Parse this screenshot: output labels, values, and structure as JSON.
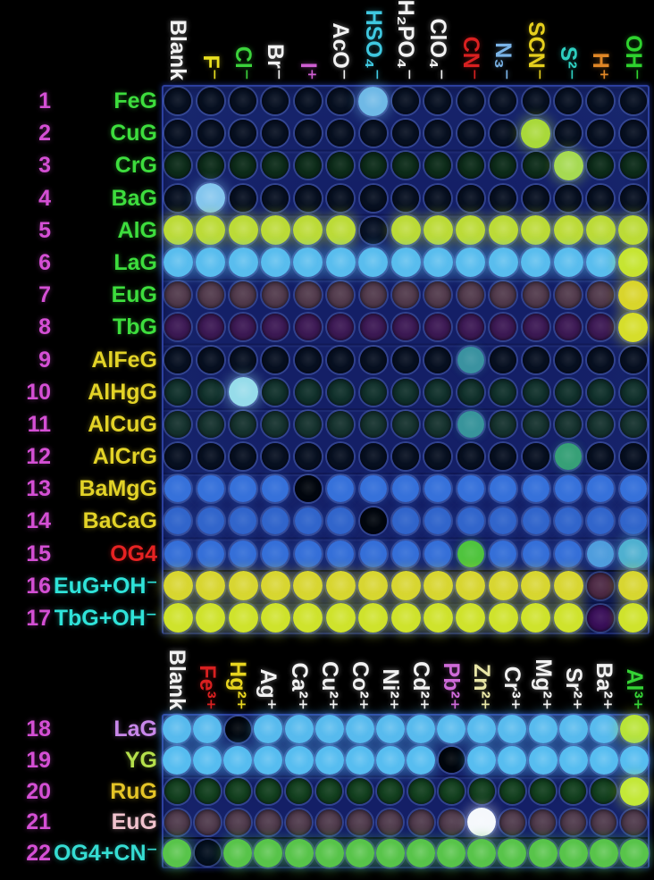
{
  "figure": {
    "description_colors": {
      "row_number": "#d44fd4",
      "plate_blue": "#18276e"
    },
    "panels": [
      {
        "id": "top",
        "name": "anion-array",
        "columns": [
          {
            "label": "Blank",
            "color": "#f2f2f2"
          },
          {
            "label": "F⁻",
            "color": "#e8df1f"
          },
          {
            "label": "Cl⁻",
            "color": "#3bd23b"
          },
          {
            "label": "Br⁻",
            "color": "#f2f2f2"
          },
          {
            "label": "I⁺",
            "color": "#cf5ed2"
          },
          {
            "label": "AcO⁻",
            "color": "#f2f2f2"
          },
          {
            "label": "HSO₄⁻",
            "color": "#3fc8e0"
          },
          {
            "label": "H₂PO₄⁻",
            "color": "#f2f2f2"
          },
          {
            "label": "ClO₄⁻",
            "color": "#f2f2f2"
          },
          {
            "label": "CN⁻",
            "color": "#d92020"
          },
          {
            "label": "N₃⁻",
            "color": "#7ab4e8"
          },
          {
            "label": "SCN⁻",
            "color": "#e5cf1d"
          },
          {
            "label": "S²⁻",
            "color": "#2ecfc0"
          },
          {
            "label": "H⁺",
            "color": "#e08726"
          },
          {
            "label": "OH⁻",
            "color": "#2ed22e"
          }
        ],
        "rows": [
          {
            "num": "1",
            "label": "FeG",
            "label_color": "#3ddd3d",
            "spot": "#071021",
            "overrides": {
              "6": "#6fb9e6"
            }
          },
          {
            "num": "2",
            "label": "CuG",
            "label_color": "#3ddd3d",
            "spot": "#071021",
            "overrides": {
              "11": "#a9d93a"
            }
          },
          {
            "num": "3",
            "label": "CrG",
            "label_color": "#3ddd3d",
            "spot": "#0c2b19",
            "overrides": {
              "12": "#a6da52"
            }
          },
          {
            "num": "4",
            "label": "BaG",
            "label_color": "#3ddd3d",
            "spot": "#071021",
            "overrides": {
              "1": "#84c6ee"
            }
          },
          {
            "num": "5",
            "label": "AlG",
            "label_color": "#3ddd3d",
            "spot": "#bcdb37",
            "overrides": {
              "6": "#081226"
            }
          },
          {
            "num": "6",
            "label": "LaG",
            "label_color": "#3ddd3d",
            "spot": "#59bdee",
            "overrides": {
              "14": "#c6e532"
            }
          },
          {
            "num": "7",
            "label": "EuG",
            "label_color": "#3ddd3d",
            "spot": "#513a4c",
            "overrides": {
              "14": "#d9d52c"
            }
          },
          {
            "num": "8",
            "label": "TbG",
            "label_color": "#3ddd3d",
            "spot": "#3c1954",
            "overrides": {
              "14": "#d6de2b"
            }
          },
          {
            "num": "9",
            "label": "AlFeG",
            "label_color": "#e3d327",
            "spot": "#071021",
            "overrides": {
              "9": "#3a92a0"
            }
          },
          {
            "num": "10",
            "label": "AlHgG",
            "label_color": "#e3d327",
            "spot": "#10302b",
            "overrides": {
              "2": "#96dcea"
            }
          },
          {
            "num": "11",
            "label": "AlCuG",
            "label_color": "#e3d327",
            "spot": "#15322e",
            "overrides": {
              "9": "#38949b"
            }
          },
          {
            "num": "12",
            "label": "AlCrG",
            "label_color": "#e3d327",
            "spot": "#071021",
            "overrides": {
              "12": "#37a077"
            }
          },
          {
            "num": "13",
            "label": "BaMgG",
            "label_color": "#e3d327",
            "spot": "#3671da",
            "overrides": {
              "4": "#02070f"
            }
          },
          {
            "num": "14",
            "label": "BaCaG",
            "label_color": "#e3d327",
            "spot": "#3165cb",
            "overrides": {
              "6": "#02070f"
            }
          },
          {
            "num": "15",
            "label": "OG4",
            "label_color": "#e62222",
            "spot": "#356fd8",
            "overrides": {
              "9": "#4fc43e",
              "13": "#4f9ddd",
              "14": "#4fb0d0"
            }
          },
          {
            "num": "16",
            "label": "EuG+OH⁻",
            "label_color": "#2fe3d9",
            "spot": "#d8d631",
            "overrides": {
              "13": "#4d2a45"
            }
          },
          {
            "num": "17",
            "label": "TbG+OH⁻",
            "label_color": "#2fe3d9",
            "spot": "#cfe32c",
            "overrides": {
              "13": "#390f59"
            }
          }
        ]
      },
      {
        "id": "bottom",
        "name": "cation-array",
        "columns": [
          {
            "label": "Blank",
            "color": "#f2f2f2"
          },
          {
            "label": "Fe³⁺",
            "color": "#d92020"
          },
          {
            "label": "Hg²⁺",
            "color": "#e8d51f"
          },
          {
            "label": "Ag⁺",
            "color": "#f2f2f2"
          },
          {
            "label": "Ca²⁺",
            "color": "#f2f2f2"
          },
          {
            "label": "Cu²⁺",
            "color": "#f2f2f2"
          },
          {
            "label": "Co²⁺",
            "color": "#f2f2f2"
          },
          {
            "label": "Ni²⁺",
            "color": "#f2f2f2"
          },
          {
            "label": "Cd²⁺",
            "color": "#f2f2f2"
          },
          {
            "label": "Pb²⁺",
            "color": "#cf6ad9"
          },
          {
            "label": "Zn²⁺",
            "color": "#e9e6a6"
          },
          {
            "label": "Cr³⁺",
            "color": "#f2f2f2"
          },
          {
            "label": "Mg²⁺",
            "color": "#f2f2f2"
          },
          {
            "label": "Sr²⁺",
            "color": "#f2f2f2"
          },
          {
            "label": "Ba²⁺",
            "color": "#f2f2f2"
          },
          {
            "label": "Al³⁺",
            "color": "#35d235"
          }
        ],
        "rows": [
          {
            "num": "18",
            "label": "LaG",
            "label_color": "#c887ea",
            "spot": "#58bbee",
            "overrides": {
              "2": "#01060d",
              "15": "#b9e438"
            }
          },
          {
            "num": "19",
            "label": "YG",
            "label_color": "#b5e04b",
            "spot": "#57bdf0",
            "overrides": {
              "9": "#01060d"
            }
          },
          {
            "num": "20",
            "label": "RuG",
            "label_color": "#e4c427",
            "spot": "#123f1e",
            "overrides": {
              "15": "#c3e838"
            }
          },
          {
            "num": "21",
            "label": "EuG",
            "label_color": "#f0c2cd",
            "spot": "#4f3a4c",
            "overrides": {
              "10": "#f5f8fc"
            }
          },
          {
            "num": "22",
            "label": "OG4+CN⁻",
            "label_color": "#35dcd2",
            "spot": "#58c44a",
            "overrides": {
              "1": "#04101f"
            }
          }
        ]
      }
    ]
  }
}
